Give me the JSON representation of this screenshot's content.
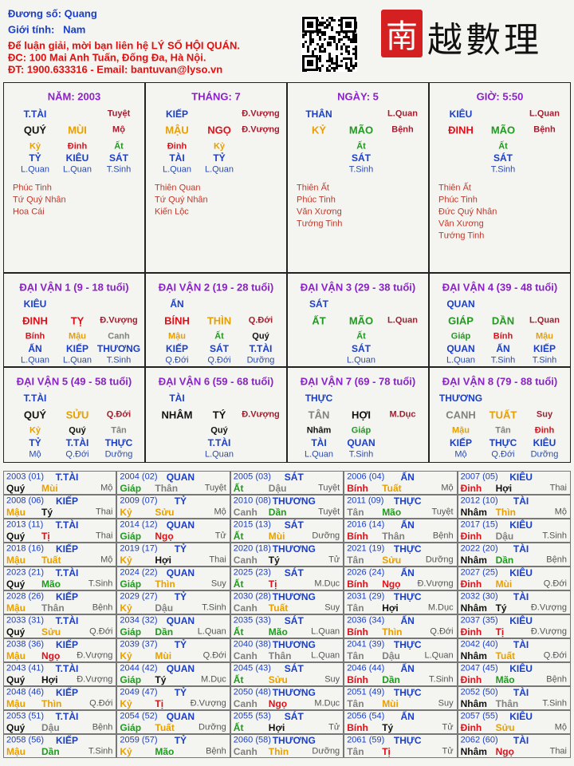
{
  "header": {
    "lines": [
      "Đương số: Quang",
      "Giới tính:   Nam",
      "Để luận giải, mời bạn liên hệ LÝ SỐ HỘI QUÁN.",
      "ĐC: 100 Mai Anh Tuấn, Đống Đa, Hà Nội.",
      "ĐT: 1900.633316 - Email: bantuvan@lyso.vn"
    ],
    "logo_seal": "南",
    "logo_text": "越數理"
  },
  "element_colors": {
    "giáp": "#1f9a1f",
    "ất": "#1f9a1f",
    "dần": "#1f9a1f",
    "mão": "#1f9a1f",
    "bính": "#e0101a",
    "đinh": "#e0101a",
    "tị": "#e0101a",
    "tỵ": "#e0101a",
    "ngọ": "#e0101a",
    "mậu": "#e8a000",
    "kỷ": "#e8a000",
    "thìn": "#e8a000",
    "tuất": "#e8a000",
    "sửu": "#e8a000",
    "mùi": "#e8a000",
    "canh": "#808080",
    "tân": "#808080",
    "thân": "#808080",
    "dậu": "#808080",
    "nhâm": "#111111",
    "quý": "#111111",
    "hợi": "#111111",
    "tý": "#111111"
  },
  "pillars": [
    {
      "title": "NĂM: 2003",
      "god": "T.TÀI",
      "top_phase": "Tuyệt",
      "stem": "QUÝ",
      "branch": "MÙI",
      "phase": "Mộ",
      "hidden": [
        "Kỷ",
        "Đinh",
        "Ất"
      ],
      "hidden_gods": [
        "TỶ",
        "KIÊU",
        "SÁT"
      ],
      "hidden_phases": [
        "L.Quan",
        "L.Quan",
        "T.Sinh"
      ],
      "stars": [
        "Phúc Tinh",
        "Tứ Quý Nhân",
        "Hoa Cái"
      ]
    },
    {
      "title": "THÁNG: 7",
      "god": "KIẾP",
      "top_phase": "Đ.Vượng",
      "stem": "MẬU",
      "branch": "NGỌ",
      "phase": "Đ.Vượng",
      "hidden": [
        "Đinh",
        "Kỷ"
      ],
      "hidden_gods": [
        "TÀI",
        "TỶ"
      ],
      "hidden_phases": [
        "L.Quan",
        "L.Quan"
      ],
      "stars": [
        "Thiên Quan",
        "Tứ Quý Nhân",
        "Kiến Lộc"
      ]
    },
    {
      "title": "NGÀY: 5",
      "god": "THÂN",
      "top_phase": "L.Quan",
      "stem": "KỶ",
      "branch": "MÃO",
      "phase": "Bệnh",
      "hidden": [
        "Ất"
      ],
      "hidden_gods": [
        "SÁT"
      ],
      "hidden_phases": [
        "T.Sinh"
      ],
      "stars": [
        "Thiên Ất",
        "Phúc Tinh",
        "Văn Xương",
        "Tướng Tinh"
      ]
    },
    {
      "title": "GIỜ: 5:50",
      "god": "KIÊU",
      "top_phase": "L.Quan",
      "stem": "ĐINH",
      "branch": "MÃO",
      "phase": "Bệnh",
      "hidden": [
        "Ất"
      ],
      "hidden_gods": [
        "SÁT"
      ],
      "hidden_phases": [
        "T.Sinh"
      ],
      "stars": [
        "Thiên Ất",
        "Phúc Tinh",
        "Đức Quý Nhân",
        "Văn Xương",
        "Tướng Tinh"
      ]
    }
  ],
  "luck_pillars": [
    {
      "title": "ĐẠI VẬN 1 (9 - 18 tuổi)",
      "god": "KIÊU",
      "stem": "ĐINH",
      "branch": "TỴ",
      "phase": "Đ.Vượng",
      "hidden": [
        "Bính",
        "Mậu",
        "Canh"
      ],
      "hidden_gods": [
        "ẤN",
        "KIẾP",
        "THƯƠNG"
      ],
      "hidden_phases": [
        "L.Quan",
        "L.Quan",
        "T.Sinh"
      ]
    },
    {
      "title": "ĐẠI VẬN 2 (19 - 28 tuổi)",
      "god": "ẤN",
      "stem": "BÍNH",
      "branch": "THÌN",
      "phase": "Q.Đới",
      "hidden": [
        "Mậu",
        "Ất",
        "Quý"
      ],
      "hidden_gods": [
        "KIẾP",
        "SÁT",
        "T.TÀI"
      ],
      "hidden_phases": [
        "Q.Đới",
        "Q.Đới",
        "Dưỡng"
      ]
    },
    {
      "title": "ĐẠI VẬN 3 (29 - 38 tuổi)",
      "god": "SÁT",
      "stem": "ẤT",
      "branch": "MÃO",
      "phase": "L.Quan",
      "hidden": [
        "Ất"
      ],
      "hidden_gods": [
        "SÁT"
      ],
      "hidden_phases": [
        "L.Quan"
      ]
    },
    {
      "title": "ĐẠI VẬN 4 (39 - 48 tuổi)",
      "god": "QUAN",
      "stem": "GIÁP",
      "branch": "DẦN",
      "phase": "L.Quan",
      "hidden": [
        "Giáp",
        "Bính",
        "Mậu"
      ],
      "hidden_gods": [
        "QUAN",
        "ẤN",
        "KIẾP"
      ],
      "hidden_phases": [
        "L.Quan",
        "T.Sinh",
        "T.Sinh"
      ]
    },
    {
      "title": "ĐẠI VẬN 5 (49 - 58 tuổi)",
      "god": "T.TÀI",
      "stem": "QUÝ",
      "branch": "SỬU",
      "phase": "Q.Đới",
      "hidden": [
        "Kỷ",
        "Quý",
        "Tân"
      ],
      "hidden_gods": [
        "TỶ",
        "T.TÀI",
        "THỰC"
      ],
      "hidden_phases": [
        "Mộ",
        "Q.Đới",
        "Dưỡng"
      ]
    },
    {
      "title": "ĐẠI VẬN 6 (59 - 68 tuổi)",
      "god": "TÀI",
      "stem": "NHÂM",
      "branch": "TÝ",
      "phase": "Đ.Vượng",
      "hidden": [
        "Quý"
      ],
      "hidden_gods": [
        "T.TÀI"
      ],
      "hidden_phases": [
        "L.Quan"
      ]
    },
    {
      "title": "ĐẠI VẬN 7 (69 - 78 tuổi)",
      "god": "THỰC",
      "stem": "TÂN",
      "branch": "HỢI",
      "phase": "M.Dục",
      "hidden": [
        "Nhâm",
        "Giáp"
      ],
      "hidden_gods": [
        "TÀI",
        "QUAN"
      ],
      "hidden_phases": [
        "L.Quan",
        "T.Sinh"
      ]
    },
    {
      "title": "ĐẠI VẬN 8 (79 - 88 tuổi)",
      "god": "THƯƠNG",
      "stem": "CANH",
      "branch": "TUẤT",
      "phase": "Suy",
      "hidden": [
        "Mậu",
        "Tân",
        "Đinh"
      ],
      "hidden_gods": [
        "KIẾP",
        "THỰC",
        "KIÊU"
      ],
      "hidden_phases": [
        "Mộ",
        "Q.Đới",
        "Dưỡng"
      ]
    }
  ],
  "years": {
    "cells": [
      [
        "2003 (01)",
        "T.TÀI",
        "Quý",
        "Mùi",
        "Mộ"
      ],
      [
        "2004 (02)",
        "QUAN",
        "Giáp",
        "Thân",
        "Tuyệt"
      ],
      [
        "2005 (03)",
        "SÁT",
        "Ất",
        "Dậu",
        "Tuyệt"
      ],
      [
        "2006 (04)",
        "ẤN",
        "Bính",
        "Tuất",
        "Mộ"
      ],
      [
        "2007 (05)",
        "KIÊU",
        "Đinh",
        "Hợi",
        "Thai"
      ],
      [
        "2008 (06)",
        "KIẾP",
        "Mậu",
        "Tý",
        "Thai"
      ],
      [
        "2009 (07)",
        "TỶ",
        "Kỷ",
        "Sửu",
        "Mộ"
      ],
      [
        "2010 (08)",
        "THƯƠNG",
        "Canh",
        "Dần",
        "Tuyệt"
      ],
      [
        "2011 (09)",
        "THỰC",
        "Tân",
        "Mão",
        "Tuyệt"
      ],
      [
        "2012 (10)",
        "TÀI",
        "Nhâm",
        "Thìn",
        "Mộ"
      ],
      [
        "2013 (11)",
        "T.TÀI",
        "Quý",
        "Tị",
        "Thai"
      ],
      [
        "2014 (12)",
        "QUAN",
        "Giáp",
        "Ngọ",
        "Tử"
      ],
      [
        "2015 (13)",
        "SÁT",
        "Ất",
        "Mùi",
        "Dưỡng"
      ],
      [
        "2016 (14)",
        "ẤN",
        "Bính",
        "Thân",
        "Bệnh"
      ],
      [
        "2017 (15)",
        "KIÊU",
        "Đinh",
        "Dậu",
        "T.Sinh"
      ],
      [
        "2018 (16)",
        "KIẾP",
        "Mậu",
        "Tuất",
        "Mộ"
      ],
      [
        "2019 (17)",
        "TỶ",
        "Kỷ",
        "Hợi",
        "Thai"
      ],
      [
        "2020 (18)",
        "THƯƠNG",
        "Canh",
        "Tý",
        "Tử"
      ],
      [
        "2021 (19)",
        "THỰC",
        "Tân",
        "Sửu",
        "Dưỡng"
      ],
      [
        "2022 (20)",
        "TÀI",
        "Nhâm",
        "Dần",
        "Bệnh"
      ],
      [
        "2023 (21)",
        "T.TÀI",
        "Quý",
        "Mão",
        "T.Sinh"
      ],
      [
        "2024 (22)",
        "QUAN",
        "Giáp",
        "Thìn",
        "Suy"
      ],
      [
        "2025 (23)",
        "SÁT",
        "Ất",
        "Tị",
        "M.Dục"
      ],
      [
        "2026 (24)",
        "ẤN",
        "Bính",
        "Ngọ",
        "Đ.Vượng"
      ],
      [
        "2027 (25)",
        "KIÊU",
        "Đinh",
        "Mùi",
        "Q.Đới"
      ],
      [
        "2028 (26)",
        "KIẾP",
        "Mậu",
        "Thân",
        "Bệnh"
      ],
      [
        "2029 (27)",
        "TỶ",
        "Kỷ",
        "Dậu",
        "T.Sinh"
      ],
      [
        "2030 (28)",
        "THƯƠNG",
        "Canh",
        "Tuất",
        "Suy"
      ],
      [
        "2031 (29)",
        "THỰC",
        "Tân",
        "Hợi",
        "M.Dục"
      ],
      [
        "2032 (30)",
        "TÀI",
        "Nhâm",
        "Tý",
        "Đ.Vượng"
      ],
      [
        "2033 (31)",
        "T.TÀI",
        "Quý",
        "Sửu",
        "Q.Đới"
      ],
      [
        "2034 (32)",
        "QUAN",
        "Giáp",
        "Dần",
        "L.Quan"
      ],
      [
        "2035 (33)",
        "SÁT",
        "Ất",
        "Mão",
        "L.Quan"
      ],
      [
        "2036 (34)",
        "ẤN",
        "Bính",
        "Thìn",
        "Q.Đới"
      ],
      [
        "2037 (35)",
        "KIÊU",
        "Đinh",
        "Tị",
        "Đ.Vượng"
      ],
      [
        "2038 (36)",
        "KIẾP",
        "Mậu",
        "Ngọ",
        "Đ.Vượng"
      ],
      [
        "2039 (37)",
        "TỶ",
        "Kỷ",
        "Mùi",
        "Q.Đới"
      ],
      [
        "2040 (38)",
        "THƯƠNG",
        "Canh",
        "Thân",
        "L.Quan"
      ],
      [
        "2041 (39)",
        "THỰC",
        "Tân",
        "Dậu",
        "L.Quan"
      ],
      [
        "2042 (40)",
        "TÀI",
        "Nhâm",
        "Tuất",
        "Q.Đới"
      ],
      [
        "2043 (41)",
        "T.TÀI",
        "Quý",
        "Hợi",
        "Đ.Vượng"
      ],
      [
        "2044 (42)",
        "QUAN",
        "Giáp",
        "Tý",
        "M.Dục"
      ],
      [
        "2045 (43)",
        "SÁT",
        "Ất",
        "Sửu",
        "Suy"
      ],
      [
        "2046 (44)",
        "ẤN",
        "Bính",
        "Dần",
        "T.Sinh"
      ],
      [
        "2047 (45)",
        "KIÊU",
        "Đinh",
        "Mão",
        "Bệnh"
      ],
      [
        "2048 (46)",
        "KIẾP",
        "Mậu",
        "Thìn",
        "Q.Đới"
      ],
      [
        "2049 (47)",
        "TỶ",
        "Kỷ",
        "Tị",
        "Đ.Vượng"
      ],
      [
        "2050 (48)",
        "THƯƠNG",
        "Canh",
        "Ngọ",
        "M.Dục"
      ],
      [
        "2051 (49)",
        "THỰC",
        "Tân",
        "Mùi",
        "Suy"
      ],
      [
        "2052 (50)",
        "TÀI",
        "Nhâm",
        "Thân",
        "T.Sinh"
      ],
      [
        "2053 (51)",
        "T.TÀI",
        "Quý",
        "Dậu",
        "Bệnh"
      ],
      [
        "2054 (52)",
        "QUAN",
        "Giáp",
        "Tuất",
        "Dưỡng"
      ],
      [
        "2055 (53)",
        "SÁT",
        "Ất",
        "Hợi",
        "Tử"
      ],
      [
        "2056 (54)",
        "ẤN",
        "Bính",
        "Tý",
        "Tử"
      ],
      [
        "2057 (55)",
        "KIÊU",
        "Đinh",
        "Sửu",
        "Mộ"
      ],
      [
        "2058 (56)",
        "KIẾP",
        "Mậu",
        "Dần",
        "T.Sinh"
      ],
      [
        "2059 (57)",
        "TỶ",
        "Kỷ",
        "Mão",
        "Bệnh"
      ],
      [
        "2060 (58)",
        "THƯƠNG",
        "Canh",
        "Thìn",
        "Dưỡng"
      ],
      [
        "2061 (59)",
        "THỰC",
        "Tân",
        "Tị",
        "Tử"
      ],
      [
        "2062 (60)",
        "TÀI",
        "Nhâm",
        "Ngọ",
        "Thai"
      ]
    ]
  }
}
